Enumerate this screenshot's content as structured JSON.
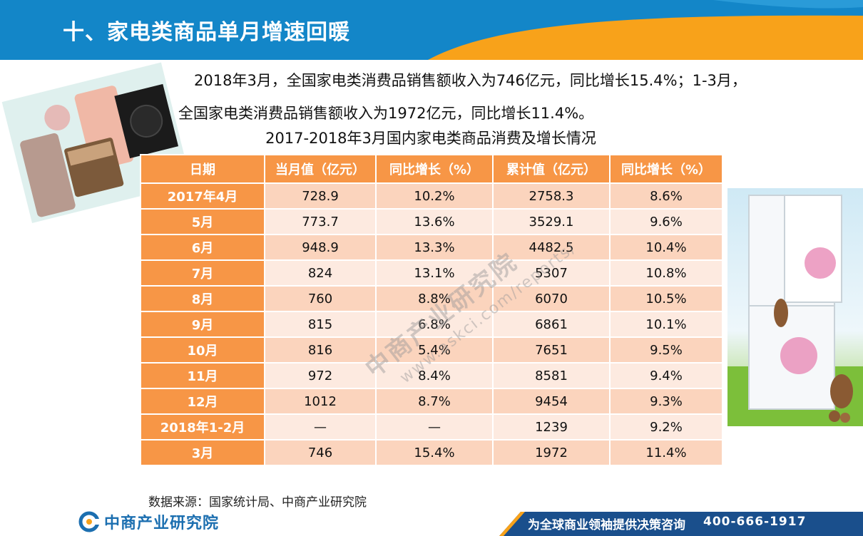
{
  "header": {
    "title": "十、家电类商品单月增速回暖"
  },
  "intro": {
    "line1": "2018年3月，全国家电类消费品销售额收入为746亿元，同比增长15.4%；1-3月，",
    "line2": "全国家电类消费品销售额收入为1972亿元，同比增长11.4%。"
  },
  "table": {
    "title": "2017-2018年3月国内家电类商品消费及增长情况",
    "headers": [
      "日期",
      "当月值（亿元）",
      "同比增长（%）",
      "累计值（亿元）",
      "同比增长（%）"
    ],
    "rows": [
      [
        "2017年4月",
        "728.9",
        "10.2%",
        "2758.3",
        "8.6%"
      ],
      [
        "5月",
        "773.7",
        "13.6%",
        "3529.1",
        "9.6%"
      ],
      [
        "6月",
        "948.9",
        "13.3%",
        "4482.5",
        "10.4%"
      ],
      [
        "7月",
        "824",
        "13.1%",
        "5307",
        "10.8%"
      ],
      [
        "8月",
        "760",
        "8.8%",
        "6070",
        "10.5%"
      ],
      [
        "9月",
        "815",
        "6.8%",
        "6861",
        "10.1%"
      ],
      [
        "10月",
        "816",
        "5.4%",
        "7651",
        "9.5%"
      ],
      [
        "11月",
        "972",
        "8.4%",
        "8581",
        "9.4%"
      ],
      [
        "12月",
        "1012",
        "8.7%",
        "9454",
        "9.3%"
      ],
      [
        "2018年1-2月",
        "—",
        "—",
        "1239",
        "9.2%"
      ],
      [
        "3月",
        "746",
        "15.4%",
        "1972",
        "11.4%"
      ]
    ]
  },
  "source": "数据来源：国家统计局、中商产业研究院",
  "watermark": {
    "name": "中商产业研究院",
    "url": "www.askci.com/reports/"
  },
  "footer": {
    "logo_text": "中商产业研究院",
    "slogan": "为全球商业领袖提供决策咨询",
    "phone": "400-666-1917"
  },
  "colors": {
    "header_blue": "#1386c8",
    "header_orange": "#f8a21a",
    "table_orange": "#f79646",
    "row_dark": "#fbd4bd",
    "row_light": "#fdeae0",
    "footer_blue": "#1a4f8c"
  }
}
